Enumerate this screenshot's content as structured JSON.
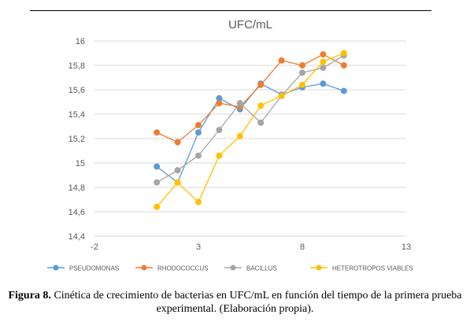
{
  "figure": {
    "caption_label": "Figura 8.",
    "caption_text": "Cinética de crecimiento de bacterias en UFC/mL en función del tiempo de la primera prueba experimental. (Elaboración propia)."
  },
  "chart_data": {
    "type": "line",
    "title": "UFC/mL",
    "xlabel": "",
    "ylabel": "",
    "xlim": [
      -2,
      13
    ],
    "ylim": [
      14.4,
      16
    ],
    "x_ticks": [
      "-2",
      "3",
      "8",
      "13"
    ],
    "y_ticks": [
      "14,4",
      "14,6",
      "14,8",
      "15",
      "15,2",
      "15,4",
      "15,6",
      "15,8",
      "16"
    ],
    "grid": "horizontal",
    "legend_position": "bottom",
    "x": [
      1,
      2,
      3,
      4,
      5,
      6,
      7,
      8,
      9,
      10
    ],
    "series": [
      {
        "name": "PSEUDOMONAS",
        "color": "#5B9BD5",
        "values": [
          14.97,
          14.84,
          15.25,
          15.53,
          15.44,
          15.65,
          15.56,
          15.62,
          15.65,
          15.59
        ]
      },
      {
        "name": "RHODOCOCCUS",
        "color": "#ED7D31",
        "values": [
          15.25,
          15.17,
          15.31,
          15.49,
          15.46,
          15.64,
          15.84,
          15.8,
          15.89,
          15.8
        ]
      },
      {
        "name": "BACILLUS",
        "color": "#A5A5A5",
        "values": [
          14.84,
          14.94,
          15.06,
          15.27,
          15.49,
          15.33,
          15.55,
          15.74,
          15.78,
          15.88
        ]
      },
      {
        "name": "HETEROTROPOS VIABLES",
        "color": "#FFC000",
        "values": [
          14.64,
          14.84,
          14.68,
          15.06,
          15.22,
          15.47,
          15.55,
          15.64,
          15.83,
          15.9
        ]
      }
    ]
  }
}
